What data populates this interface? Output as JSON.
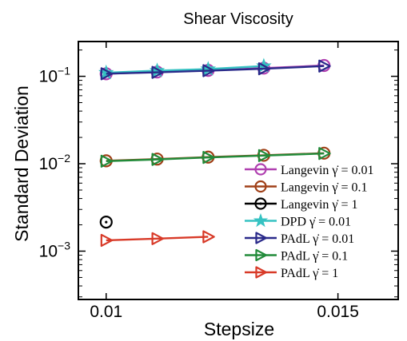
{
  "chart_data": {
    "type": "line",
    "title": "Shear Viscosity",
    "xlabel": "Stepsize",
    "ylabel": "Standard Deviation",
    "xlim": [
      0.0094,
      0.0163
    ],
    "ylim": [
      0.00028,
      0.25
    ],
    "yscale": "log",
    "xticks": [
      0.01,
      0.015
    ],
    "xtick_labels": [
      "0.01",
      "0.015"
    ],
    "yticks": [
      0.001,
      0.01,
      0.1
    ],
    "ytick_labels": [
      {
        "base": "10",
        "exp": "−3"
      },
      {
        "base": "10",
        "exp": "−2"
      },
      {
        "base": "10",
        "exp": "−1"
      }
    ],
    "legend_position": "lower-right",
    "grid": false,
    "series": [
      {
        "name": "Langevin γ̇ = 0.01",
        "color": "#b040b0",
        "marker": "circle",
        "x": [
          0.01,
          0.0111,
          0.0122,
          0.0134,
          0.0147
        ],
        "y": [
          0.107,
          0.112,
          0.117,
          0.124,
          0.133
        ]
      },
      {
        "name": "Langevin γ̇ = 0.1",
        "color": "#a04018",
        "marker": "circle",
        "x": [
          0.01,
          0.0111,
          0.0122,
          0.0134,
          0.0147
        ],
        "y": [
          0.0108,
          0.0113,
          0.0119,
          0.0125,
          0.0132
        ]
      },
      {
        "name": "Langevin γ̇ = 1",
        "color": "#000000",
        "marker": "circle",
        "x": [
          0.01
        ],
        "y": [
          0.00215
        ]
      },
      {
        "name": "DPD γ̇ = 0.01",
        "color": "#35c2c2",
        "marker": "star",
        "x": [
          0.01,
          0.0111,
          0.0122,
          0.0134
        ],
        "y": [
          0.11,
          0.116,
          0.121,
          0.131
        ]
      },
      {
        "name": "PAdL γ̇ = 0.01",
        "color": "#2a2a8a",
        "marker": "triangle-right",
        "x": [
          0.01,
          0.0111,
          0.0122,
          0.0134,
          0.0147
        ],
        "y": [
          0.107,
          0.111,
          0.116,
          0.122,
          0.131
        ]
      },
      {
        "name": "PAdL γ̇ = 0.1",
        "color": "#228b3a",
        "marker": "triangle-right",
        "x": [
          0.01,
          0.0111,
          0.0122,
          0.0134,
          0.0147
        ],
        "y": [
          0.0107,
          0.0112,
          0.0118,
          0.0124,
          0.0131
        ]
      },
      {
        "name": "PAdL γ̇ = 1",
        "color": "#d83a28",
        "marker": "triangle-right",
        "x": [
          0.01,
          0.0111,
          0.0122
        ],
        "y": [
          0.00133,
          0.00139,
          0.00146
        ]
      }
    ]
  }
}
